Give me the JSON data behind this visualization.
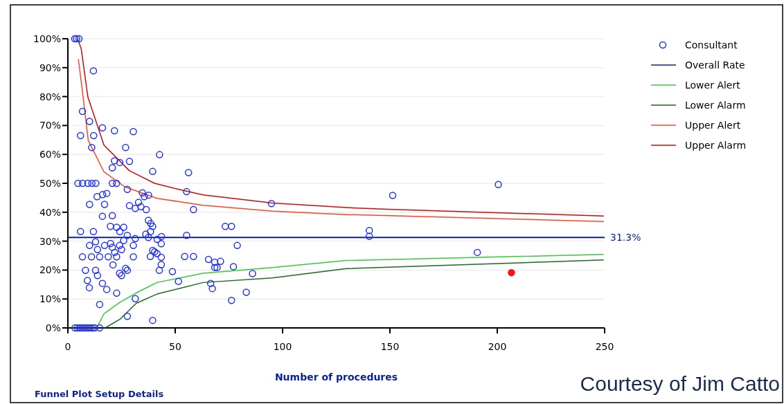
{
  "chart_data": {
    "type": "scatter",
    "xlabel": "Number of procedures",
    "xlim": [
      0,
      250
    ],
    "xticks": [
      0,
      50,
      100,
      150,
      200,
      250
    ],
    "ylim": [
      0,
      100
    ],
    "yticks": [
      {
        "value": 0,
        "label": "0%"
      },
      {
        "value": 10,
        "label": "10%"
      },
      {
        "value": 20,
        "label": "20%"
      },
      {
        "value": 30,
        "label": "30%"
      },
      {
        "value": 40,
        "label": "40%"
      },
      {
        "value": 50,
        "label": "50%"
      },
      {
        "value": 60,
        "label": "60%"
      },
      {
        "value": 70,
        "label": "70%"
      },
      {
        "value": 80,
        "label": "80%"
      },
      {
        "value": 90,
        "label": "90%"
      },
      {
        "value": 100,
        "label": "100%"
      }
    ],
    "grid": "y",
    "legend": "right",
    "series": [
      {
        "name": "Consultant",
        "marker": "circle",
        "color": "#2233ee",
        "x": [
          3.2,
          4.1,
          5.2,
          11.9,
          6.8,
          5.9,
          10.1,
          12,
          11.1,
          16.1,
          21.7,
          30.5,
          26.9,
          21.7,
          24.2,
          28.7,
          20.7,
          4.7,
          6.8,
          9.3,
          11.2,
          13,
          20.7,
          22.7,
          27.7,
          13.6,
          16.2,
          18.1,
          10.1,
          17.1,
          28.7,
          31.4,
          32.9,
          16.1,
          20.7,
          19.8,
          22.7,
          26,
          24.2,
          5.9,
          11.9,
          12.9,
          10.1,
          13.8,
          17.1,
          19.9,
          20.7,
          21.8,
          24.1,
          25,
          26,
          27.7,
          31.4,
          30.5,
          6.8,
          11,
          14.8,
          18.8,
          22.7,
          30.5,
          21,
          8.2,
          12.9,
          26.9,
          27.7,
          24.1,
          25,
          9.1,
          10,
          13.8,
          16.1,
          18.1,
          14.8,
          22.7,
          31.4,
          27.7,
          3.3,
          4.5,
          5.5,
          6.5,
          7.5,
          8.5,
          9.5,
          10.5,
          11.5,
          12.5,
          14.8,
          48.7,
          51.5,
          43.5,
          42.6,
          43.5,
          38.4,
          39.5,
          40.4,
          41.5,
          43.5,
          41.6,
          43.6,
          37.5,
          36.3,
          38.5,
          39.5,
          38.6,
          37.5,
          36.5,
          34,
          35.6,
          37.6,
          34.7,
          39.5,
          42.7,
          56.2,
          55.3,
          58.5,
          73.3,
          76.2,
          55.3,
          78.9,
          54.4,
          58.5,
          65.5,
          68.4,
          71.1,
          68.4,
          69.5,
          77.1,
          86,
          66.5,
          67.3,
          83.1,
          76.2,
          39.5,
          94.8,
          140.4,
          140.4,
          151.3,
          190.7,
          200.5
        ],
        "values": [
          100,
          100,
          100,
          88.9,
          74.9,
          66.5,
          71.4,
          66.5,
          62.4,
          69.2,
          68.2,
          67.9,
          62.4,
          57.8,
          57.2,
          57.6,
          55.4,
          50,
          50,
          50,
          50,
          50,
          50,
          50,
          47.9,
          45.4,
          46.1,
          46.5,
          42.7,
          42.7,
          42.3,
          41.3,
          43.4,
          38.6,
          38.8,
          35.1,
          34.8,
          34.8,
          33.3,
          33.3,
          33.3,
          29.8,
          28.5,
          27.1,
          28.5,
          29.2,
          27.9,
          26.1,
          28.5,
          27.1,
          30.2,
          32,
          30.9,
          28.5,
          24.6,
          24.6,
          24.6,
          24.6,
          24.6,
          24.6,
          21.8,
          19.9,
          19.9,
          20.6,
          19.9,
          18.9,
          18.1,
          16.4,
          13.9,
          18.1,
          15.4,
          13.3,
          8.1,
          12,
          10.1,
          4,
          0,
          0,
          0,
          0,
          0,
          0,
          0,
          0,
          0,
          0,
          0,
          19.5,
          16.1,
          21.9,
          19.9,
          24.4,
          24.7,
          26.8,
          26.3,
          25.7,
          29.1,
          30.6,
          31.6,
          31.3,
          32.4,
          33.3,
          35.1,
          36.1,
          37.2,
          40.9,
          41.9,
          45.4,
          45.9,
          46.7,
          54.1,
          59.9,
          53.7,
          47.1,
          40.9,
          35.1,
          35.1,
          32,
          28.5,
          24.7,
          24.7,
          23.7,
          22.7,
          23,
          20.9,
          20.9,
          21.2,
          18.8,
          15.4,
          13.6,
          12.3,
          9.5,
          2.6,
          43,
          33.7,
          31.7,
          45.8,
          26.1,
          49.6
        ]
      },
      {
        "name": "Overall Rate",
        "type": "line",
        "color": "#0a1f99",
        "x": [
          0,
          250
        ],
        "values": [
          31.3,
          31.3
        ]
      },
      {
        "name": "Lower Alert",
        "type": "line",
        "color": "#33cc33",
        "x": [
          13.5,
          16.8,
          24.3,
          32.9,
          41.5,
          52.3,
          63,
          95.3,
          129.7,
          249.6
        ],
        "values": [
          0,
          4.9,
          8.9,
          12.5,
          15.7,
          17.3,
          18.9,
          20.9,
          23.3,
          25.4
        ]
      },
      {
        "name": "Lower Alarm",
        "type": "line",
        "color": "#1a6b1a",
        "x": [
          17.3,
          24.3,
          31.8,
          41.5,
          52.3,
          63,
          95.3,
          129.7,
          249.6
        ],
        "values": [
          0,
          3,
          8.5,
          11.7,
          13.7,
          15.7,
          17.3,
          20.5,
          23.5
        ]
      },
      {
        "name": "Upper Alert",
        "type": "line",
        "color": "#ff4422",
        "x": [
          4.9,
          7.1,
          9.5,
          16.8,
          26.5,
          41.5,
          52.3,
          63,
          95.3,
          129.7,
          249.6
        ],
        "values": [
          93,
          79.9,
          64.8,
          54,
          48.8,
          44.8,
          43.6,
          42.4,
          40.4,
          39.2,
          36.8
        ]
      },
      {
        "name": "Upper Alarm",
        "type": "line",
        "color": "#cc0a0a",
        "x": [
          4.5,
          6.2,
          9.3,
          16.8,
          28.6,
          40.4,
          52.3,
          63,
          95.3,
          129.7,
          149,
          249.6
        ],
        "values": [
          100,
          96.6,
          79.9,
          63.2,
          54.4,
          50,
          47.8,
          46,
          43.2,
          41.6,
          41,
          38.7
        ]
      },
      {
        "marker": "circle",
        "color": "#ff1111",
        "x": [
          206.6
        ],
        "values": [
          19.1
        ]
      }
    ],
    "annotations": [
      {
        "text": "31.3%",
        "x": 250,
        "y": 31.3
      },
      "Funnel Plot Setup Details",
      "Courtesy of Jim Catto"
    ]
  }
}
